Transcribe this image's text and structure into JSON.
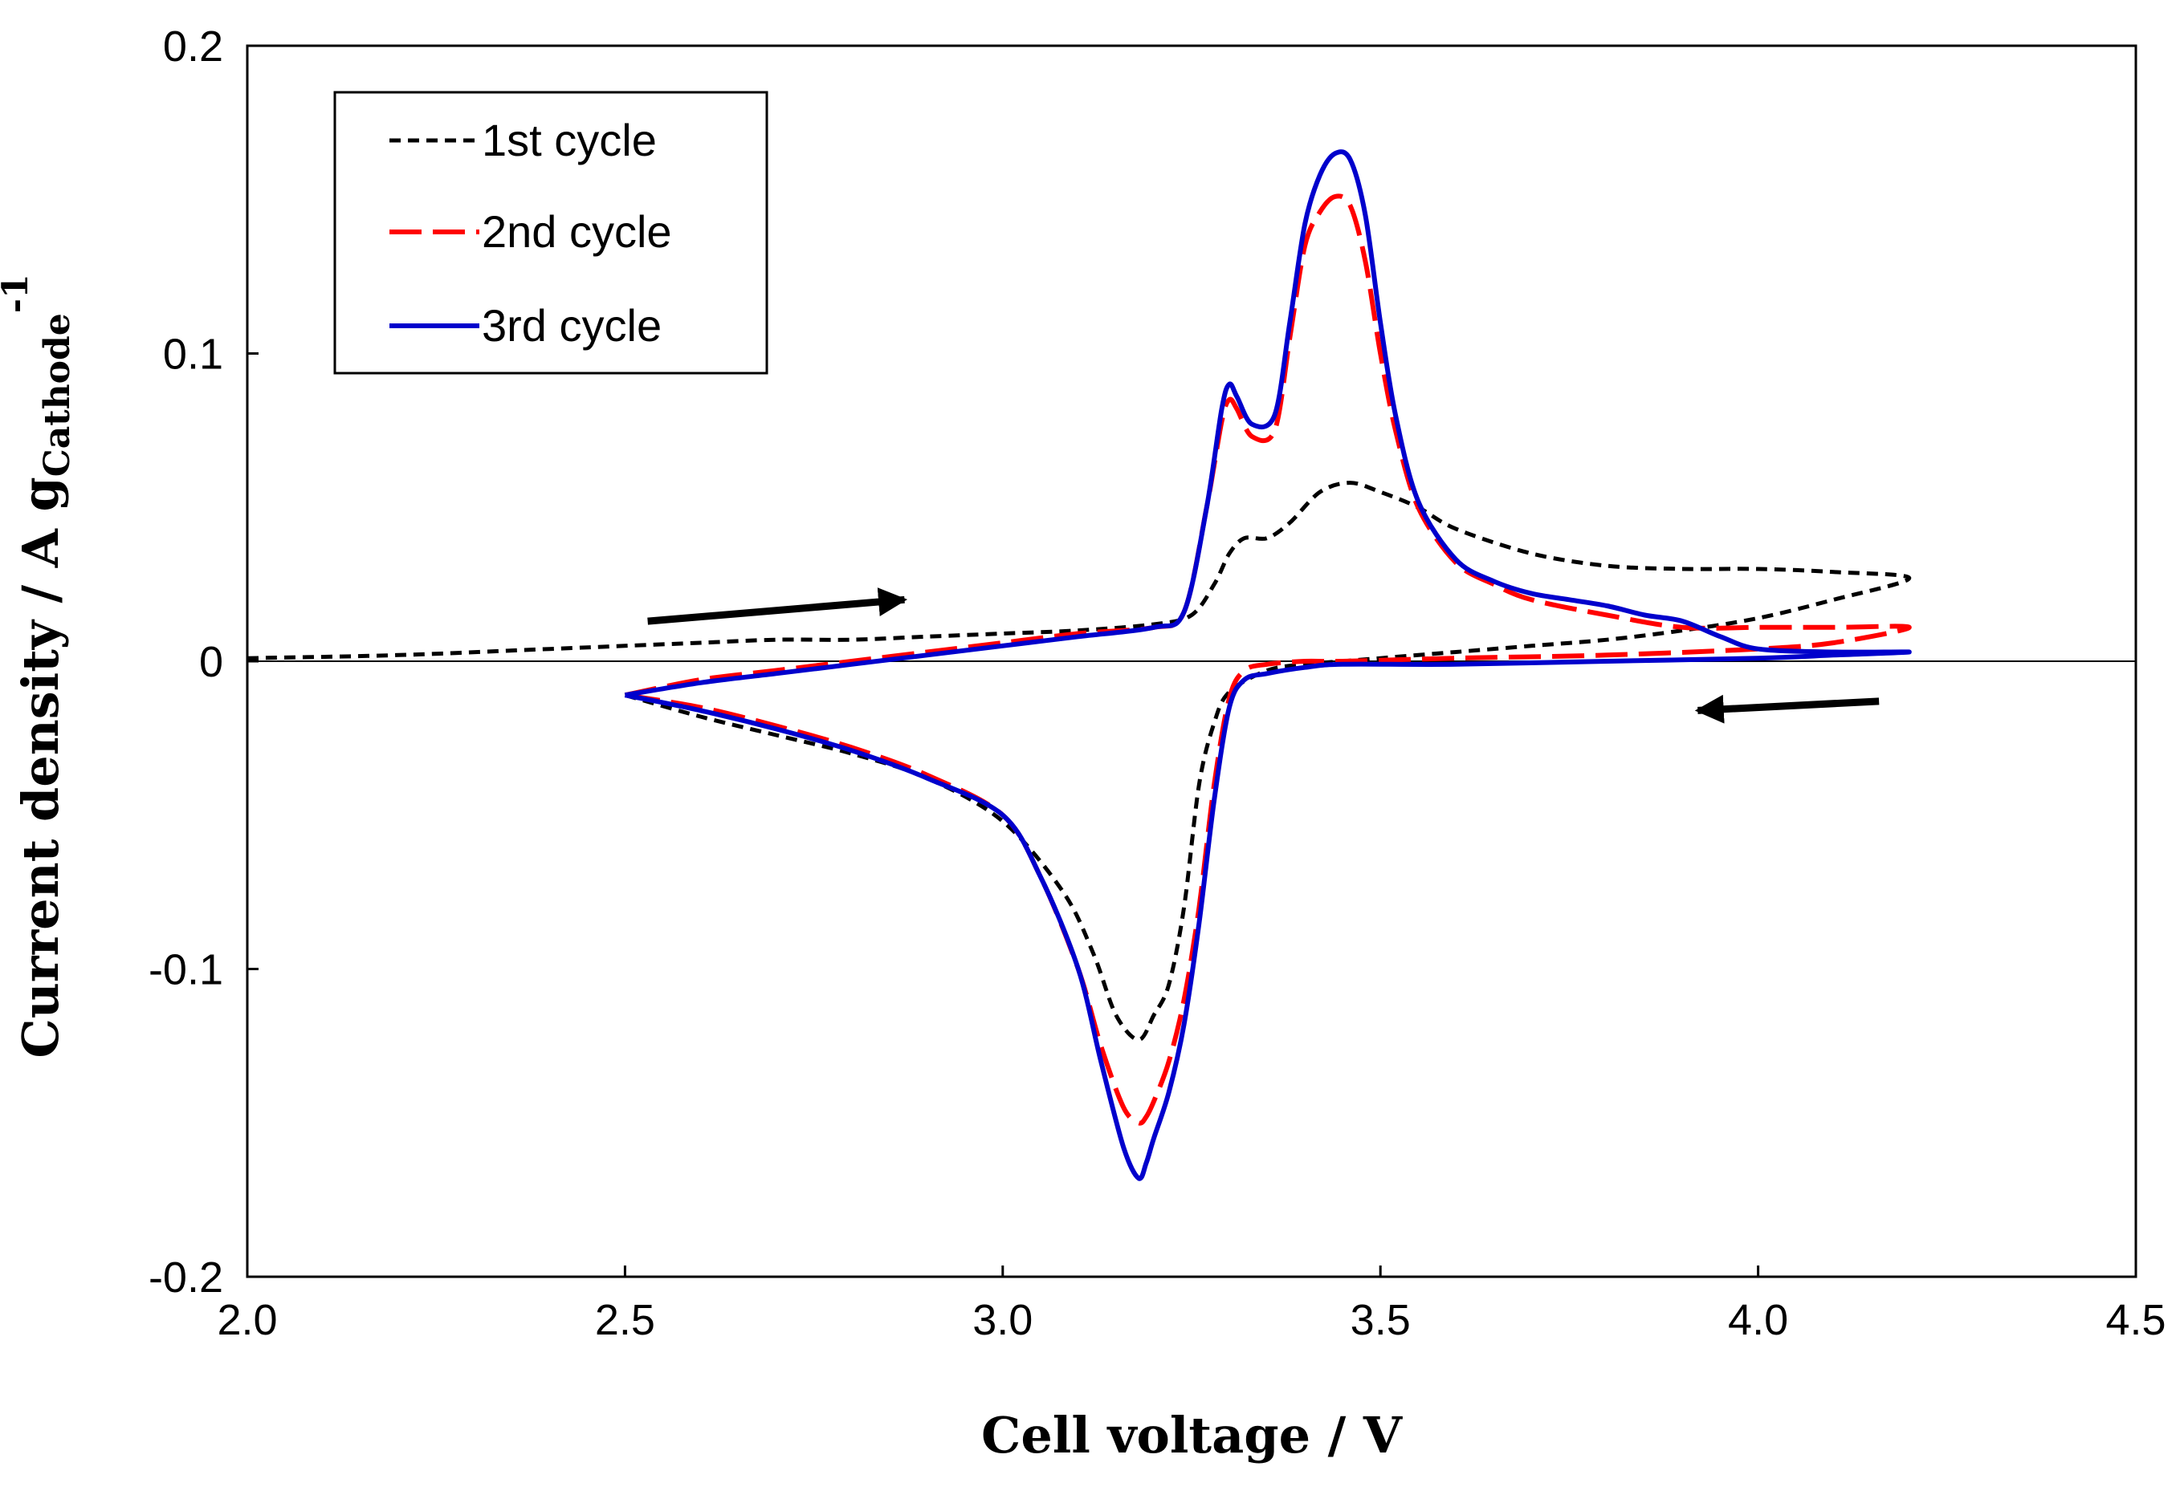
{
  "chart_data": {
    "type": "line",
    "title": "",
    "xlabel": "Cell voltage / V",
    "ylabel": {
      "main": "Current density / A g",
      "subscript": "Cathode",
      "superscript": "-1"
    },
    "xlim": [
      2.0,
      4.5
    ],
    "ylim": [
      -0.2,
      0.2
    ],
    "xticks": [
      2.0,
      2.5,
      3.0,
      3.5,
      4.0,
      4.5
    ],
    "xtick_labels": [
      "2.0",
      "2.5",
      "3.0",
      "3.5",
      "4.0",
      "4.5"
    ],
    "yticks": [
      -0.2,
      -0.1,
      0,
      0.1,
      0.2
    ],
    "ytick_labels": [
      "-0.2",
      "-0.1",
      "0",
      "0.1",
      "0.2"
    ],
    "grid": false,
    "legend_position": "top-left",
    "series": [
      {
        "name": "1st cycle",
        "color": "#000000",
        "dash": "short-dash",
        "x": [
          2.0,
          2.2,
          2.4,
          2.5,
          2.6,
          2.7,
          2.8,
          2.9,
          3.0,
          3.1,
          3.2,
          3.25,
          3.28,
          3.3,
          3.32,
          3.35,
          3.38,
          3.42,
          3.46,
          3.5,
          3.55,
          3.6,
          3.7,
          3.8,
          3.9,
          4.0,
          4.1,
          4.2,
          4.1,
          4.0,
          3.9,
          3.8,
          3.7,
          3.6,
          3.5,
          3.45,
          3.4,
          3.35,
          3.3,
          3.28,
          3.26,
          3.24,
          3.22,
          3.2,
          3.18,
          3.15,
          3.12,
          3.08,
          3.0,
          2.9,
          2.8,
          2.7,
          2.6,
          2.5
        ],
        "y": [
          0.001,
          0.002,
          0.004,
          0.005,
          0.006,
          0.007,
          0.007,
          0.008,
          0.009,
          0.01,
          0.012,
          0.015,
          0.025,
          0.035,
          0.04,
          0.04,
          0.045,
          0.055,
          0.058,
          0.055,
          0.05,
          0.043,
          0.035,
          0.031,
          0.03,
          0.03,
          0.029,
          0.027,
          0.02,
          0.014,
          0.01,
          0.007,
          0.005,
          0.003,
          0.001,
          0.0,
          -0.001,
          -0.003,
          -0.01,
          -0.02,
          -0.04,
          -0.08,
          -0.105,
          -0.115,
          -0.123,
          -0.115,
          -0.095,
          -0.075,
          -0.052,
          -0.038,
          -0.03,
          -0.024,
          -0.018,
          -0.011
        ]
      },
      {
        "name": "2nd cycle",
        "color": "#ff0000",
        "dash": "long-dash",
        "x": [
          2.5,
          2.6,
          2.7,
          2.8,
          2.9,
          3.0,
          3.1,
          3.2,
          3.24,
          3.27,
          3.29,
          3.3,
          3.31,
          3.33,
          3.36,
          3.38,
          3.4,
          3.42,
          3.44,
          3.46,
          3.48,
          3.5,
          3.52,
          3.55,
          3.6,
          3.65,
          3.7,
          3.8,
          3.9,
          4.0,
          4.1,
          4.2,
          4.1,
          4.0,
          3.8,
          3.6,
          3.45,
          3.4,
          3.35,
          3.32,
          3.3,
          3.28,
          3.26,
          3.24,
          3.22,
          3.2,
          3.19,
          3.18,
          3.16,
          3.13,
          3.1,
          3.05,
          3.0,
          2.9,
          2.8,
          2.7,
          2.6,
          2.5
        ],
        "y": [
          -0.011,
          -0.006,
          -0.003,
          0.0,
          0.003,
          0.006,
          0.009,
          0.011,
          0.016,
          0.05,
          0.078,
          0.085,
          0.082,
          0.073,
          0.075,
          0.105,
          0.135,
          0.146,
          0.151,
          0.148,
          0.13,
          0.1,
          0.075,
          0.05,
          0.032,
          0.025,
          0.02,
          0.015,
          0.011,
          0.011,
          0.011,
          0.011,
          0.006,
          0.004,
          0.002,
          0.001,
          0.0,
          0.0,
          -0.001,
          -0.003,
          -0.012,
          -0.04,
          -0.08,
          -0.11,
          -0.13,
          -0.143,
          -0.148,
          -0.15,
          -0.145,
          -0.125,
          -0.1,
          -0.07,
          -0.05,
          -0.037,
          -0.028,
          -0.021,
          -0.015,
          -0.011
        ]
      },
      {
        "name": "3rd cycle",
        "color": "#0000cc",
        "dash": "solid",
        "x": [
          2.5,
          2.6,
          2.7,
          2.8,
          2.9,
          3.0,
          3.1,
          3.2,
          3.24,
          3.27,
          3.29,
          3.3,
          3.31,
          3.33,
          3.36,
          3.38,
          3.4,
          3.42,
          3.44,
          3.46,
          3.48,
          3.5,
          3.52,
          3.55,
          3.6,
          3.65,
          3.7,
          3.75,
          3.8,
          3.85,
          3.9,
          3.95,
          4.0,
          4.1,
          4.2,
          4.1,
          4.0,
          3.8,
          3.6,
          3.45,
          3.4,
          3.35,
          3.32,
          3.3,
          3.28,
          3.26,
          3.24,
          3.22,
          3.2,
          3.19,
          3.18,
          3.16,
          3.13,
          3.1,
          3.05,
          3.0,
          2.9,
          2.8,
          2.7,
          2.6,
          2.5
        ],
        "y": [
          -0.011,
          -0.007,
          -0.004,
          -0.001,
          0.002,
          0.005,
          0.008,
          0.011,
          0.016,
          0.05,
          0.082,
          0.09,
          0.086,
          0.077,
          0.08,
          0.11,
          0.142,
          0.158,
          0.165,
          0.163,
          0.145,
          0.11,
          0.08,
          0.052,
          0.033,
          0.026,
          0.022,
          0.02,
          0.018,
          0.015,
          0.013,
          0.008,
          0.004,
          0.003,
          0.003,
          0.002,
          0.001,
          0.0,
          -0.001,
          -0.001,
          -0.002,
          -0.004,
          -0.006,
          -0.015,
          -0.045,
          -0.085,
          -0.118,
          -0.14,
          -0.155,
          -0.163,
          -0.168,
          -0.158,
          -0.13,
          -0.1,
          -0.07,
          -0.05,
          -0.038,
          -0.029,
          -0.022,
          -0.016,
          -0.011
        ]
      }
    ],
    "annotations": [
      {
        "type": "arrow",
        "direction": "right",
        "from": [
          2.53,
          0.013
        ],
        "to": [
          2.87,
          0.02
        ]
      },
      {
        "type": "arrow",
        "direction": "left",
        "from": [
          4.16,
          -0.013
        ],
        "to": [
          3.92,
          -0.016
        ]
      }
    ]
  }
}
